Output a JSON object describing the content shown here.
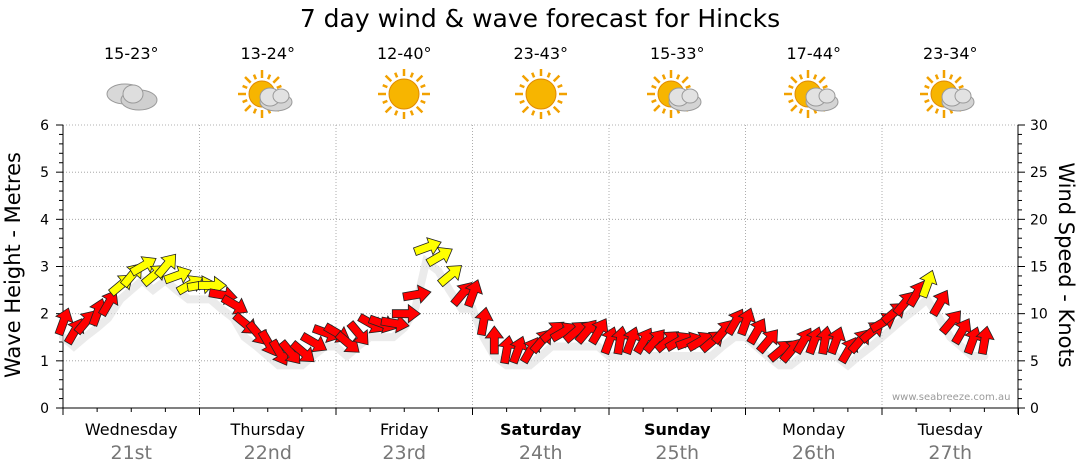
{
  "chart_data": {
    "type": "line",
    "title": "7 day wind & wave forecast for Hincks",
    "ylabel": "Wave Height - Metres",
    "y2label": "Wind Speed - Knots",
    "ylim": [
      0,
      6
    ],
    "y2lim": [
      0,
      30
    ],
    "yticks": [
      "0",
      "1",
      "2",
      "3",
      "4",
      "5",
      "6"
    ],
    "y2ticks": [
      "0",
      "5",
      "10",
      "15",
      "20",
      "25",
      "30"
    ],
    "grid": true,
    "days": [
      {
        "name": "Wednesday",
        "date": "21st",
        "bold": false,
        "temp": "15-23°",
        "icon": "cloudy"
      },
      {
        "name": "Thursday",
        "date": "22nd",
        "bold": false,
        "temp": "13-24°",
        "icon": "partly-cloudy"
      },
      {
        "name": "Friday",
        "date": "23rd",
        "bold": false,
        "temp": "12-40°",
        "icon": "sunny"
      },
      {
        "name": "Saturday",
        "date": "24th",
        "bold": true,
        "temp": "23-43°",
        "icon": "sunny"
      },
      {
        "name": "Sunday",
        "date": "25th",
        "bold": true,
        "temp": "15-33°",
        "icon": "partly-cloudy"
      },
      {
        "name": "Monday",
        "date": "26th",
        "bold": false,
        "temp": "17-44°",
        "icon": "partly-cloudy"
      },
      {
        "name": "Tuesday",
        "date": "27th",
        "bold": false,
        "temp": "23-34°",
        "icon": "partly-cloudy"
      }
    ],
    "wind_series": {
      "name": "",
      "x_days": [
        0.0,
        0.08,
        0.16,
        0.25,
        0.33,
        0.42,
        0.5,
        0.58,
        0.66,
        0.75,
        0.83,
        0.92,
        1.0,
        1.08,
        1.16,
        1.25,
        1.33,
        1.42,
        1.5,
        1.58,
        1.66,
        1.75,
        1.83,
        1.92,
        2.0,
        2.08,
        2.16,
        2.25,
        2.33,
        2.42,
        2.5,
        2.58,
        2.66,
        2.75,
        2.83,
        2.92,
        3.0,
        3.08,
        3.16,
        3.25,
        3.33,
        3.42,
        3.5,
        3.58,
        3.66,
        3.75,
        3.83,
        3.92,
        4.0,
        4.08,
        4.16,
        4.25,
        4.33,
        4.42,
        4.5,
        4.58,
        4.66,
        4.75,
        4.83,
        4.92,
        5.0,
        5.08,
        5.16,
        5.25,
        5.33,
        5.42,
        5.5,
        5.58,
        5.66,
        5.75,
        5.83,
        5.92,
        6.0,
        6.08,
        6.16,
        6.25,
        6.33,
        6.42,
        6.5,
        6.58,
        6.66,
        6.75
      ],
      "speed_knots": [
        9,
        8,
        9,
        10,
        11,
        13,
        14,
        15,
        14,
        15,
        14,
        13,
        13,
        13,
        12,
        11,
        9,
        8,
        7,
        6,
        6,
        6,
        7,
        8,
        8,
        7,
        8,
        9,
        9,
        9,
        10,
        12,
        17,
        16,
        14,
        12,
        12,
        9,
        7,
        6,
        6,
        6,
        7,
        8,
        8,
        8,
        8,
        8,
        7,
        7,
        7,
        7,
        7,
        7,
        7,
        7,
        7,
        7,
        8,
        9,
        9,
        8,
        7,
        6,
        6,
        7,
        7,
        7,
        7,
        6,
        7,
        8,
        9,
        10,
        11,
        12,
        13,
        11,
        9,
        8,
        7,
        7
      ],
      "direction_deg": [
        200,
        210,
        220,
        200,
        210,
        230,
        220,
        240,
        230,
        220,
        250,
        240,
        260,
        270,
        280,
        300,
        310,
        320,
        330,
        330,
        320,
        310,
        300,
        290,
        300,
        310,
        320,
        300,
        290,
        280,
        270,
        260,
        250,
        240,
        230,
        220,
        200,
        190,
        180,
        190,
        200,
        210,
        220,
        230,
        240,
        230,
        220,
        210,
        200,
        190,
        200,
        210,
        220,
        230,
        240,
        250,
        240,
        230,
        220,
        210,
        200,
        210,
        220,
        230,
        220,
        210,
        200,
        190,
        200,
        210,
        220,
        230,
        240,
        230,
        220,
        210,
        200,
        210,
        220,
        210,
        200,
        190
      ]
    },
    "colors": {
      "calm": "#ff0000",
      "strong": "#ffff00",
      "outline": "#222222",
      "grid": "#999999",
      "axis": "#000000",
      "date": "#777777"
    }
  },
  "credit": "www.seabreeze.com.au"
}
